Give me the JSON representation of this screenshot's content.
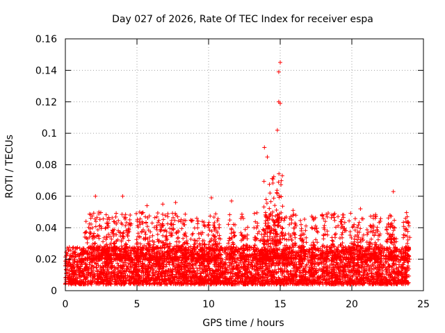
{
  "chart_data": {
    "type": "scatter",
    "title": "Day 027 of 2026, Rate Of TEC Index for receiver espa",
    "xlabel": "GPS time / hours",
    "ylabel": "ROTI / TECUs",
    "xlim": [
      0,
      25
    ],
    "ylim": [
      0,
      0.16
    ],
    "xticks": [
      0,
      5,
      10,
      15,
      20,
      25
    ],
    "yticks": [
      0,
      0.02,
      0.04,
      0.06,
      0.08,
      0.1,
      0.12,
      0.14,
      0.16
    ],
    "xtick_labels": [
      "0",
      "5",
      "10",
      "15",
      "20",
      "25"
    ],
    "ytick_labels": [
      "0",
      "0.02",
      "0.04",
      "0.06",
      "0.08",
      "0.1",
      "0.12",
      "0.14",
      "0.16"
    ],
    "grid": true,
    "marker": "+",
    "series": [
      {
        "name": "ROTI",
        "color": "#ff0000",
        "x_range": [
          0,
          24
        ],
        "baseline_range": [
          0.004,
          0.028
        ],
        "notable_points": [
          {
            "x": 2.1,
            "y": 0.06
          },
          {
            "x": 4.0,
            "y": 0.06
          },
          {
            "x": 5.7,
            "y": 0.054
          },
          {
            "x": 6.8,
            "y": 0.055
          },
          {
            "x": 7.7,
            "y": 0.056
          },
          {
            "x": 10.2,
            "y": 0.059
          },
          {
            "x": 11.6,
            "y": 0.057
          },
          {
            "x": 13.9,
            "y": 0.091
          },
          {
            "x": 14.1,
            "y": 0.085
          },
          {
            "x": 14.8,
            "y": 0.102
          },
          {
            "x": 14.9,
            "y": 0.12
          },
          {
            "x": 14.9,
            "y": 0.139
          },
          {
            "x": 15.0,
            "y": 0.145
          },
          {
            "x": 15.0,
            "y": 0.119
          },
          {
            "x": 15.9,
            "y": 0.051
          },
          {
            "x": 18.8,
            "y": 0.049
          },
          {
            "x": 20.6,
            "y": 0.052
          },
          {
            "x": 22.9,
            "y": 0.063
          }
        ]
      }
    ]
  }
}
